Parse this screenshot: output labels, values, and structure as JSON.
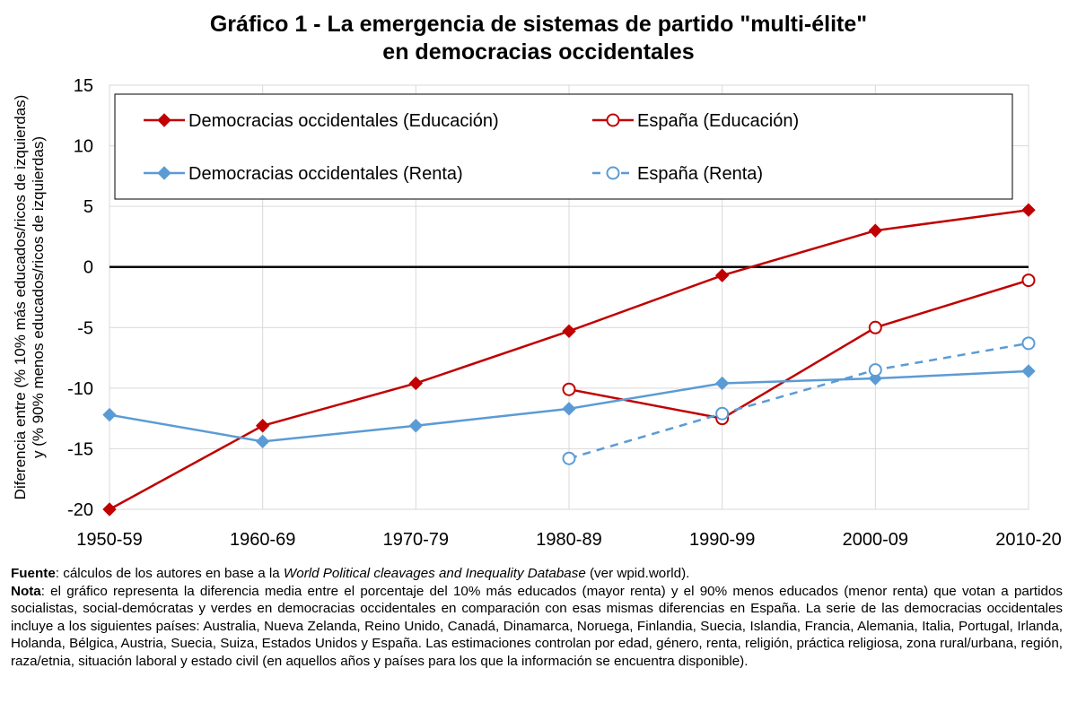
{
  "title": {
    "line1": "Gráfico 1 - La emergencia de sistemas de partido \"multi-élite\"",
    "line2": "en democracias occidentales"
  },
  "chart_data": {
    "type": "line",
    "title": "Gráfico 1 - La emergencia de sistemas de partido \"multi-élite\" en democracias occidentales",
    "ylabel_lines": [
      "Diferencia entre (% 10% más educados/ricos de izquierdas)",
      "y (% 90% menos educados/ricos de izquierdas)"
    ],
    "xlabel": "",
    "categories": [
      "1950-59",
      "1960-69",
      "1970-79",
      "1980-89",
      "1990-99",
      "2000-09",
      "2010-20"
    ],
    "yticks": [
      15,
      10,
      5,
      0,
      -5,
      -10,
      -15,
      -20
    ],
    "ylim": [
      -20,
      15
    ],
    "grid": true,
    "zero_line": true,
    "legend_position": "top",
    "series": [
      {
        "name": "Democracias occidentales (Educación)",
        "color": "#c00000",
        "marker": "diamond-filled",
        "dash": "solid",
        "values": [
          -20.0,
          -13.1,
          -9.6,
          -5.3,
          -0.7,
          3.0,
          4.7
        ]
      },
      {
        "name": "España (Educación)",
        "color": "#c00000",
        "marker": "circle-open",
        "dash": "solid",
        "values": [
          null,
          null,
          null,
          -10.1,
          -12.5,
          -5.0,
          -1.1
        ]
      },
      {
        "name": "Democracias occidentales (Renta)",
        "color": "#5b9bd5",
        "marker": "diamond-filled",
        "dash": "solid",
        "values": [
          -12.2,
          -14.4,
          -13.1,
          -11.7,
          -9.6,
          -9.2,
          -8.6
        ]
      },
      {
        "name": "España (Renta)",
        "color": "#5b9bd5",
        "marker": "circle-open",
        "dash": "dashed",
        "values": [
          null,
          null,
          null,
          -15.8,
          -12.1,
          -8.5,
          -6.3
        ]
      }
    ]
  },
  "notes": {
    "fuente_label": "Fuente",
    "fuente_pre": ": cálculos de los autores en base a la ",
    "fuente_italic": "World Political cleavages and Inequality Database",
    "fuente_post": " (ver wpid.world).",
    "nota_label": "Nota",
    "nota_text": ": el gráfico representa la diferencia media entre el porcentaje del 10% más educados (mayor renta) y el 90% menos educados (menor renta) que votan a partidos socialistas, social-demócratas y verdes en democracias occidentales en comparación con esas mismas diferencias en España. La serie de las democracias occidentales incluye a los siguientes países: Australia, Nueva Zelanda, Reino Unido, Canadá, Dinamarca, Noruega, Finlandia, Suecia, Islandia, Francia, Alemania, Italia, Portugal, Irlanda, Holanda, Bélgica, Austria, Suecia, Suiza, Estados Unidos y España. Las estimaciones controlan por edad, género, renta, religión, práctica religiosa, zona rural/urbana, región, raza/etnia, situación laboral y estado civil (en aquellos años y países para los que la información se encuentra disponible)."
  }
}
